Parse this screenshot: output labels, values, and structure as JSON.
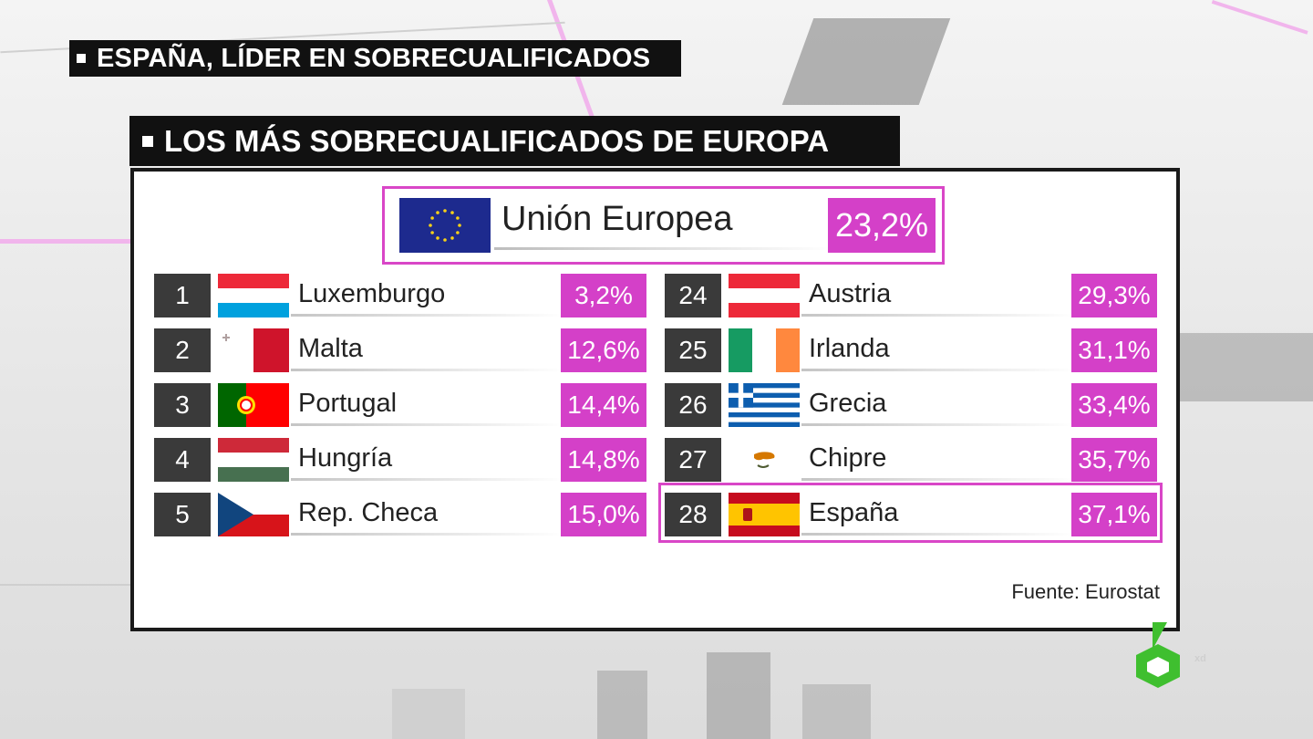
{
  "header": {
    "title": "ESPAÑA, LÍDER EN SOBRECUALIFICADOS",
    "subtitle": "LOS MÁS SOBRECUALIFICADOS DE EUROPA"
  },
  "eu": {
    "name": "Unión Europea",
    "percent": "23,2%",
    "flag_icon": "eu-flag-icon"
  },
  "left_column": [
    {
      "rank": "1",
      "country": "Luxemburgo",
      "percent": "3,2%",
      "flag_icon": "luxembourg-flag-icon"
    },
    {
      "rank": "2",
      "country": "Malta",
      "percent": "12,6%",
      "flag_icon": "malta-flag-icon"
    },
    {
      "rank": "3",
      "country": "Portugal",
      "percent": "14,4%",
      "flag_icon": "portugal-flag-icon"
    },
    {
      "rank": "4",
      "country": "Hungría",
      "percent": "14,8%",
      "flag_icon": "hungary-flag-icon"
    },
    {
      "rank": "5",
      "country": "Rep. Checa",
      "percent": "15,0%",
      "flag_icon": "czech-flag-icon"
    }
  ],
  "right_column": [
    {
      "rank": "24",
      "country": "Austria",
      "percent": "29,3%",
      "flag_icon": "austria-flag-icon"
    },
    {
      "rank": "25",
      "country": "Irlanda",
      "percent": "31,1%",
      "flag_icon": "ireland-flag-icon"
    },
    {
      "rank": "26",
      "country": "Grecia",
      "percent": "33,4%",
      "flag_icon": "greece-flag-icon"
    },
    {
      "rank": "27",
      "country": "Chipre",
      "percent": "35,7%",
      "flag_icon": "cyprus-flag-icon"
    },
    {
      "rank": "28",
      "country": "España",
      "percent": "37,1%",
      "flag_icon": "spain-flag-icon"
    }
  ],
  "highlighted_country": "España",
  "source": "Fuente: Eurostat",
  "colors": {
    "accent_magenta": "#d440c8",
    "rank_box": "#3a3a3a",
    "title_bar": "#111111"
  },
  "logo": {
    "icon": "lasexta-logo-icon",
    "suffix": "xd"
  }
}
